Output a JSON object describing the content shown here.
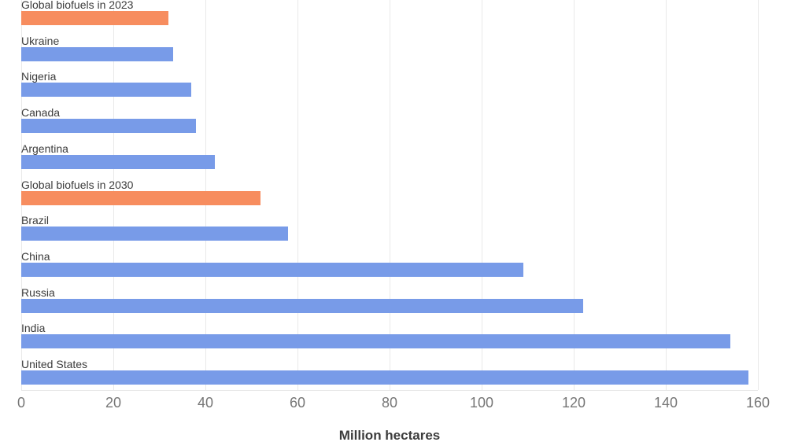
{
  "chart_data": {
    "type": "bar",
    "orientation": "horizontal",
    "xlabel": "Million hectares",
    "categories": [
      "Global biofuels in 2023",
      "Ukraine",
      "Nigeria",
      "Canada",
      "Argentina",
      "Global biofuels in 2030",
      "Brazil",
      "China",
      "Russia",
      "India",
      "United States"
    ],
    "values": [
      32,
      33,
      37,
      38,
      42,
      52,
      58,
      109,
      122,
      154,
      158
    ],
    "bar_colors": [
      "#f78d5f",
      "#789be8",
      "#789be8",
      "#789be8",
      "#789be8",
      "#f78d5f",
      "#789be8",
      "#789be8",
      "#789be8",
      "#789be8",
      "#789be8"
    ],
    "x_ticks": [
      0,
      20,
      40,
      60,
      80,
      100,
      120,
      140,
      160
    ],
    "xlim": [
      0,
      160
    ],
    "grid": true,
    "legend": "none",
    "colors": {
      "bar_default": "#789be8",
      "bar_highlight": "#f78d5f",
      "category_label": "#3b3b3b",
      "tick_label": "#767676",
      "gridline": "#e9e9e9"
    }
  }
}
